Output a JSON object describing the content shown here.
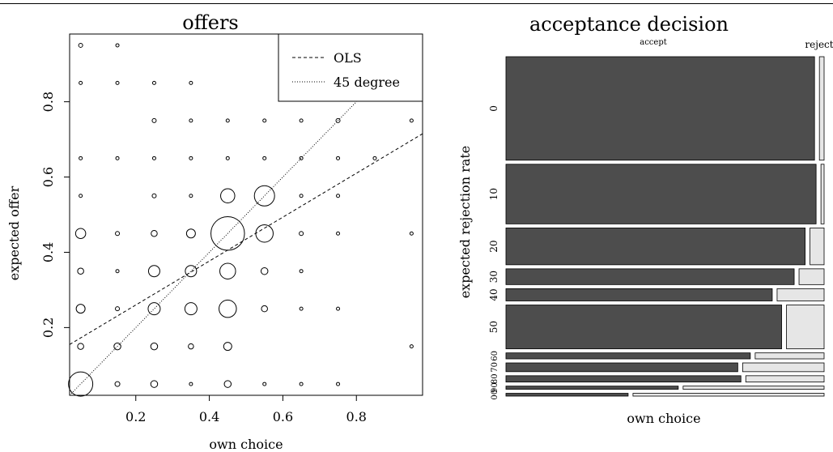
{
  "chart_data": [
    {
      "type": "scatter",
      "title": "offers",
      "xlabel": "own choice",
      "ylabel": "expected offer",
      "xlim": [
        0.02,
        0.98
      ],
      "ylim": [
        0.02,
        0.98
      ],
      "xticks": [
        "0.2",
        "0.4",
        "0.6",
        "0.8"
      ],
      "yticks": [
        "0.2",
        "0.4",
        "0.6",
        "0.8"
      ],
      "legend_position": "top-right",
      "legend": [
        {
          "label": "OLS",
          "style": "dashed"
        },
        {
          "label": "45 degree",
          "style": "dotted"
        }
      ],
      "lines": [
        {
          "name": "OLS",
          "x": [
            0.02,
            0.98
          ],
          "y": [
            0.155,
            0.715
          ]
        },
        {
          "name": "45 degree",
          "x": [
            0.02,
            0.98
          ],
          "y": [
            0.02,
            0.98
          ]
        }
      ],
      "points": [
        {
          "x": 0.05,
          "y": 0.95,
          "r": 1
        },
        {
          "x": 0.15,
          "y": 0.95,
          "r": 0.6
        },
        {
          "x": 0.95,
          "y": 0.95,
          "r": 0.6
        },
        {
          "x": 0.05,
          "y": 0.85,
          "r": 0.6
        },
        {
          "x": 0.15,
          "y": 0.85,
          "r": 0.6
        },
        {
          "x": 0.25,
          "y": 0.85,
          "r": 0.6
        },
        {
          "x": 0.35,
          "y": 0.85,
          "r": 0.6
        },
        {
          "x": 0.65,
          "y": 0.85,
          "r": 0.6
        },
        {
          "x": 0.75,
          "y": 0.85,
          "r": 0.6
        },
        {
          "x": 0.25,
          "y": 0.75,
          "r": 1
        },
        {
          "x": 0.35,
          "y": 0.75,
          "r": 0.8
        },
        {
          "x": 0.45,
          "y": 0.75,
          "r": 0.8
        },
        {
          "x": 0.55,
          "y": 0.75,
          "r": 0.6
        },
        {
          "x": 0.65,
          "y": 0.75,
          "r": 0.6
        },
        {
          "x": 0.75,
          "y": 0.75,
          "r": 1
        },
        {
          "x": 0.95,
          "y": 0.75,
          "r": 0.6
        },
        {
          "x": 0.05,
          "y": 0.65,
          "r": 0.6
        },
        {
          "x": 0.15,
          "y": 0.65,
          "r": 0.6
        },
        {
          "x": 0.25,
          "y": 0.65,
          "r": 0.6
        },
        {
          "x": 0.35,
          "y": 0.65,
          "r": 0.8
        },
        {
          "x": 0.45,
          "y": 0.65,
          "r": 0.8
        },
        {
          "x": 0.55,
          "y": 0.65,
          "r": 0.6
        },
        {
          "x": 0.65,
          "y": 0.65,
          "r": 0.6
        },
        {
          "x": 0.75,
          "y": 0.65,
          "r": 0.6
        },
        {
          "x": 0.85,
          "y": 0.65,
          "r": 0.6
        },
        {
          "x": 0.05,
          "y": 0.55,
          "r": 0.8
        },
        {
          "x": 0.25,
          "y": 0.55,
          "r": 1
        },
        {
          "x": 0.35,
          "y": 0.55,
          "r": 0.8
        },
        {
          "x": 0.45,
          "y": 0.55,
          "r": 3.5
        },
        {
          "x": 0.55,
          "y": 0.55,
          "r": 5
        },
        {
          "x": 0.65,
          "y": 0.55,
          "r": 0.6
        },
        {
          "x": 0.75,
          "y": 0.55,
          "r": 0.6
        },
        {
          "x": 0.05,
          "y": 0.45,
          "r": 2.5
        },
        {
          "x": 0.15,
          "y": 0.45,
          "r": 1
        },
        {
          "x": 0.25,
          "y": 0.45,
          "r": 1.5
        },
        {
          "x": 0.35,
          "y": 0.45,
          "r": 2.2
        },
        {
          "x": 0.45,
          "y": 0.45,
          "r": 8.3
        },
        {
          "x": 0.55,
          "y": 0.45,
          "r": 4.3
        },
        {
          "x": 0.65,
          "y": 0.45,
          "r": 1
        },
        {
          "x": 0.75,
          "y": 0.45,
          "r": 0.8
        },
        {
          "x": 0.95,
          "y": 0.45,
          "r": 0.6
        },
        {
          "x": 0.05,
          "y": 0.35,
          "r": 1.5
        },
        {
          "x": 0.15,
          "y": 0.35,
          "r": 0.8
        },
        {
          "x": 0.25,
          "y": 0.35,
          "r": 2.8
        },
        {
          "x": 0.35,
          "y": 0.35,
          "r": 2.8
        },
        {
          "x": 0.45,
          "y": 0.35,
          "r": 3.9
        },
        {
          "x": 0.55,
          "y": 0.35,
          "r": 1.7
        },
        {
          "x": 0.65,
          "y": 0.35,
          "r": 0.6
        },
        {
          "x": 0.05,
          "y": 0.25,
          "r": 2.2
        },
        {
          "x": 0.15,
          "y": 0.25,
          "r": 1
        },
        {
          "x": 0.25,
          "y": 0.25,
          "r": 3
        },
        {
          "x": 0.35,
          "y": 0.25,
          "r": 3
        },
        {
          "x": 0.45,
          "y": 0.25,
          "r": 4.3
        },
        {
          "x": 0.55,
          "y": 0.25,
          "r": 1.5
        },
        {
          "x": 0.65,
          "y": 0.25,
          "r": 0.6
        },
        {
          "x": 0.75,
          "y": 0.25,
          "r": 0.6
        },
        {
          "x": 0.05,
          "y": 0.15,
          "r": 1.5
        },
        {
          "x": 0.15,
          "y": 0.15,
          "r": 1.7
        },
        {
          "x": 0.25,
          "y": 0.15,
          "r": 1.7
        },
        {
          "x": 0.35,
          "y": 0.15,
          "r": 1.3
        },
        {
          "x": 0.45,
          "y": 0.15,
          "r": 2
        },
        {
          "x": 0.95,
          "y": 0.15,
          "r": 0.6
        },
        {
          "x": 0.05,
          "y": 0.05,
          "r": 6
        },
        {
          "x": 0.15,
          "y": 0.05,
          "r": 1.2
        },
        {
          "x": 0.25,
          "y": 0.05,
          "r": 1.7
        },
        {
          "x": 0.35,
          "y": 0.05,
          "r": 0.8
        },
        {
          "x": 0.45,
          "y": 0.05,
          "r": 1.7
        },
        {
          "x": 0.55,
          "y": 0.05,
          "r": 0.8
        },
        {
          "x": 0.65,
          "y": 0.05,
          "r": 0.6
        },
        {
          "x": 0.75,
          "y": 0.05,
          "r": 0.6
        }
      ]
    },
    {
      "type": "mosaic",
      "title": "acceptance decision",
      "xlabel": "own choice",
      "ylabel": "expected rejection rate",
      "columns": [
        "accept",
        "reject"
      ],
      "colors": {
        "accept": "#4d4d4d",
        "reject": "#e6e6e6"
      },
      "rows": [
        {
          "label": "0",
          "share": 0.295,
          "accept": 0.985
        },
        {
          "label": "10",
          "share": 0.17,
          "accept": 0.99
        },
        {
          "label": "20",
          "share": 0.105,
          "accept": 0.955
        },
        {
          "label": "30",
          "share": 0.045,
          "accept": 0.92
        },
        {
          "label": "40",
          "share": 0.035,
          "accept": 0.85
        },
        {
          "label": "50",
          "share": 0.125,
          "accept": 0.88
        },
        {
          "label": "60",
          "share": 0.017,
          "accept": 0.78
        },
        {
          "label": "70",
          "share": 0.025,
          "accept": 0.74
        },
        {
          "label": "80",
          "share": 0.018,
          "accept": 0.75
        },
        {
          "label": "90",
          "share": 0.009,
          "accept": 0.55
        },
        {
          "label": "00",
          "share": 0.008,
          "accept": 0.39
        }
      ]
    }
  ]
}
